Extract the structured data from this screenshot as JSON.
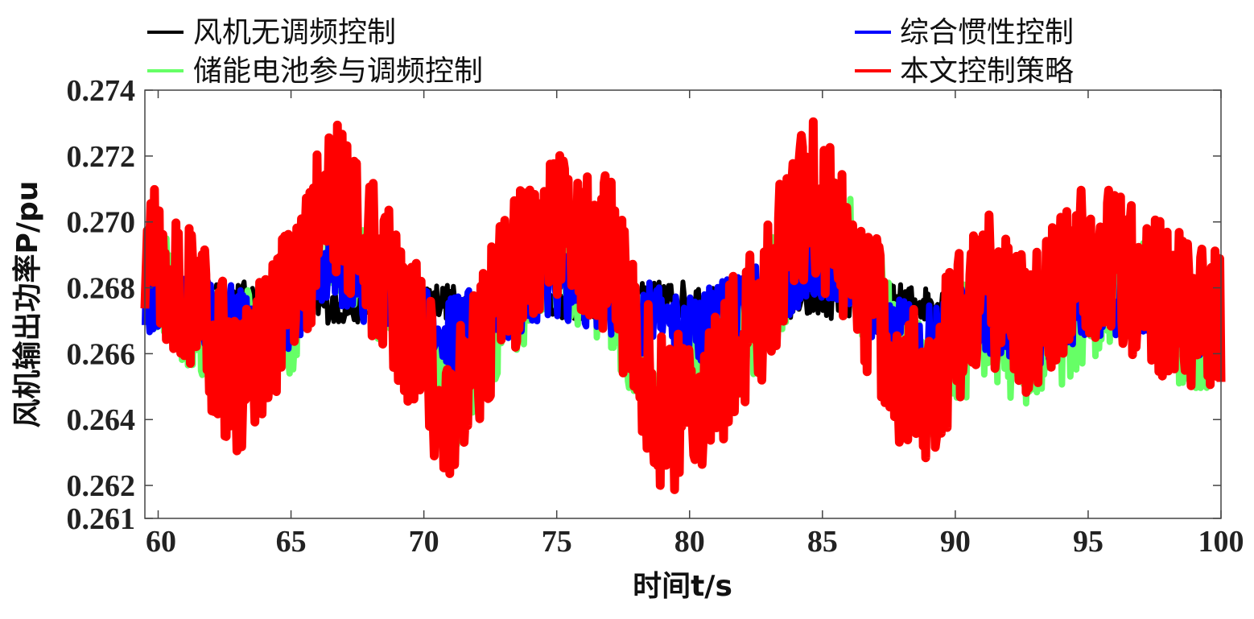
{
  "chart_data": {
    "type": "line",
    "xlabel": "时间t/s",
    "ylabel": "风机输出功率P/pu",
    "xlim": [
      59.5,
      100
    ],
    "ylim": [
      0.261,
      0.274
    ],
    "x_ticks": [
      "60",
      "65",
      "70",
      "75",
      "80",
      "85",
      "90",
      "95",
      "100"
    ],
    "y_ticks": [
      "0.261",
      "0.262",
      "0.264",
      "0.266",
      "0.268",
      "0.270",
      "0.272",
      "0.274"
    ],
    "grid": false,
    "legend_position": "top",
    "series": [
      {
        "name": "风机无调频控制",
        "color": "#000000",
        "x": [
          59.5,
          62,
          64.5,
          67,
          69.5,
          72,
          74.5,
          77,
          79.5,
          82,
          84.5,
          87,
          89.5,
          92,
          94.5,
          97,
          100
        ],
        "y": [
          0.2675,
          0.2676,
          0.2677,
          0.2674,
          0.2678,
          0.2674,
          0.2676,
          0.2675,
          0.2677,
          0.2674,
          0.2676,
          0.2676,
          0.2675,
          0.2676,
          0.2677,
          0.2678,
          0.2675
        ]
      },
      {
        "name": "储能电池参与调频控制",
        "color": "#66ff66",
        "x": [
          59.5,
          61,
          63,
          65,
          66.5,
          68,
          70,
          71,
          73,
          75,
          77,
          79,
          81,
          83,
          84.5,
          86,
          88,
          89,
          91,
          93,
          95,
          97,
          99,
          100
        ],
        "y": [
          0.269,
          0.2675,
          0.266,
          0.267,
          0.27,
          0.2685,
          0.266,
          0.2645,
          0.2675,
          0.269,
          0.268,
          0.2645,
          0.2655,
          0.2675,
          0.2705,
          0.269,
          0.266,
          0.265,
          0.267,
          0.266,
          0.2675,
          0.2685,
          0.266,
          0.267
        ]
      },
      {
        "name": "综合惯性控制",
        "color": "#0000ff",
        "x": [
          59.5,
          61,
          63,
          65,
          66.5,
          68,
          70,
          71,
          73,
          75,
          77,
          79,
          81,
          83,
          84.5,
          86,
          88,
          89,
          91,
          93,
          95,
          97,
          99,
          100
        ],
        "y": [
          0.2678,
          0.2675,
          0.2668,
          0.2672,
          0.2688,
          0.268,
          0.267,
          0.2665,
          0.2675,
          0.2683,
          0.2678,
          0.2668,
          0.267,
          0.2676,
          0.269,
          0.2682,
          0.2668,
          0.2664,
          0.2672,
          0.2668,
          0.2676,
          0.2678,
          0.267,
          0.2674
        ]
      },
      {
        "name": "本文控制策略",
        "color": "#ff0000",
        "x": [
          59.5,
          61,
          63,
          65,
          66.5,
          68,
          70,
          71,
          73,
          75,
          77,
          79,
          81,
          83,
          84.5,
          86,
          88,
          89,
          91,
          93,
          95,
          97,
          99,
          100
        ],
        "y": [
          0.2692,
          0.268,
          0.265,
          0.2675,
          0.271,
          0.269,
          0.266,
          0.264,
          0.268,
          0.27,
          0.269,
          0.264,
          0.265,
          0.268,
          0.271,
          0.269,
          0.2655,
          0.265,
          0.268,
          0.267,
          0.269,
          0.268,
          0.267,
          0.2675
        ]
      }
    ]
  }
}
